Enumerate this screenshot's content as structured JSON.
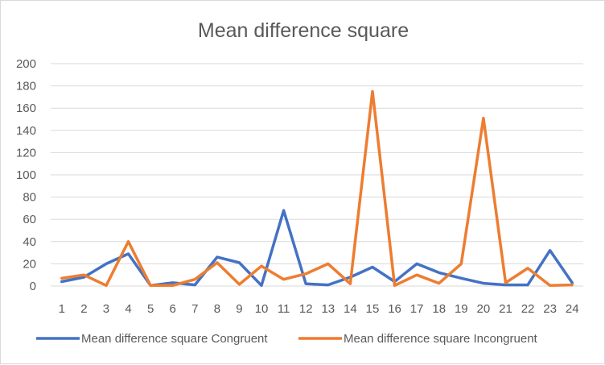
{
  "chart_data": {
    "type": "line",
    "title": "Mean difference square",
    "xlabel": "",
    "ylabel": "",
    "categories": [
      "1",
      "2",
      "3",
      "4",
      "5",
      "6",
      "7",
      "8",
      "9",
      "10",
      "11",
      "12",
      "13",
      "14",
      "15",
      "16",
      "17",
      "18",
      "19",
      "20",
      "21",
      "22",
      "23",
      "24"
    ],
    "ylim": [
      0,
      200
    ],
    "yticks": [
      "0",
      "20",
      "40",
      "60",
      "80",
      "100",
      "120",
      "140",
      "160",
      "180",
      "200"
    ],
    "grid": true,
    "legend_position": "bottom",
    "series": [
      {
        "name": "Mean difference square Congruent",
        "color": "#4472c4",
        "values": [
          4,
          8,
          20,
          29,
          0.5,
          3,
          1,
          26,
          21,
          0.5,
          68,
          2,
          1,
          8,
          17,
          4,
          20,
          12,
          7,
          2.5,
          1,
          1,
          32,
          3
        ]
      },
      {
        "name": "Mean difference square Incongruent",
        "color": "#ed7d31",
        "values": [
          7,
          10,
          0.5,
          40,
          0.5,
          0.5,
          6,
          21,
          1.5,
          18,
          6,
          11,
          20,
          2,
          175,
          0.5,
          10,
          2.5,
          20,
          151,
          3,
          16,
          0.5,
          1
        ]
      }
    ]
  }
}
